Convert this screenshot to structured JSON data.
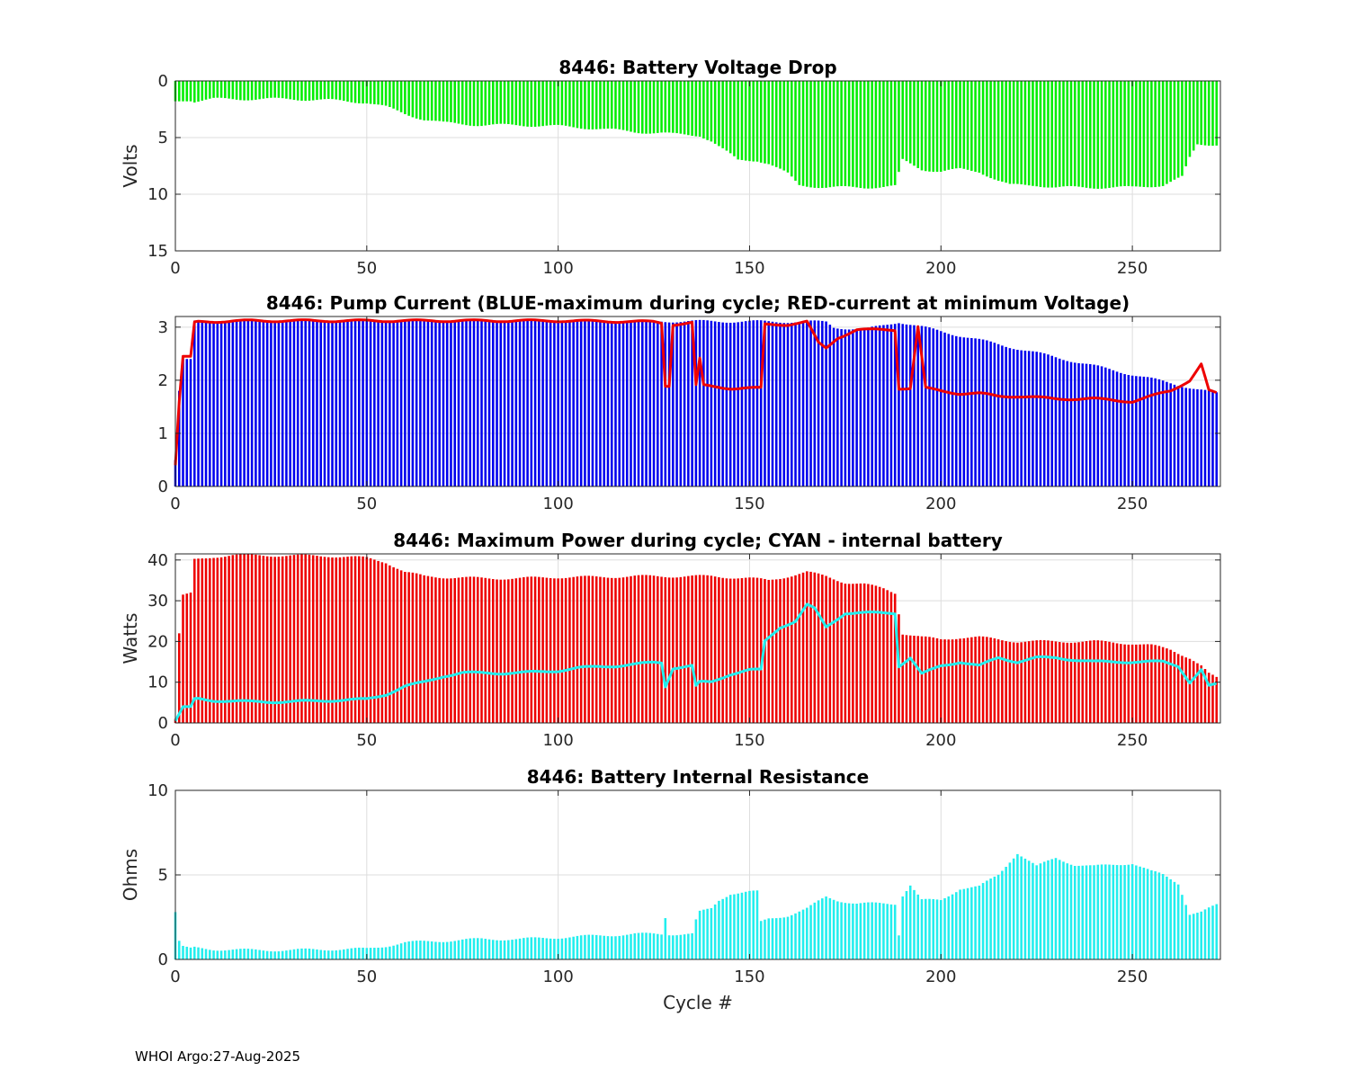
{
  "footer": "WHOI Argo:27-Aug-2025",
  "chart_data": [
    {
      "type": "bar",
      "title": "8446: Battery Voltage Drop",
      "xlabel": "",
      "ylabel": "Volts",
      "xlim": [
        0,
        273
      ],
      "ylim": [
        0,
        15
      ],
      "y_reversed": true,
      "xticks": [
        0,
        50,
        100,
        150,
        200,
        250
      ],
      "yticks": [
        0,
        5,
        10,
        15
      ],
      "grid": true,
      "bar_color": "#00ee00",
      "series": [
        {
          "name": "Voltage drop",
          "points": [
            [
              0,
              1.8
            ],
            [
              5,
              1.8
            ],
            [
              10,
              1.6
            ],
            [
              20,
              1.6
            ],
            [
              30,
              1.6
            ],
            [
              40,
              1.7
            ],
            [
              50,
              1.9
            ],
            [
              55,
              2.3
            ],
            [
              60,
              2.9
            ],
            [
              65,
              3.4
            ],
            [
              70,
              3.7
            ],
            [
              80,
              3.9
            ],
            [
              90,
              3.9
            ],
            [
              100,
              4.0
            ],
            [
              110,
              4.2
            ],
            [
              120,
              4.5
            ],
            [
              127,
              4.6
            ],
            [
              130,
              4.7
            ],
            [
              137,
              4.8
            ],
            [
              140,
              5.3
            ],
            [
              142,
              5.8
            ],
            [
              145,
              6.5
            ],
            [
              147,
              7.0
            ],
            [
              152,
              7.0
            ],
            [
              155,
              7.3
            ],
            [
              160,
              8.2
            ],
            [
              163,
              9.2
            ],
            [
              170,
              9.4
            ],
            [
              180,
              9.4
            ],
            [
              188,
              9.3
            ],
            [
              190,
              7.0
            ],
            [
              195,
              7.8
            ],
            [
              200,
              8.0
            ],
            [
              205,
              7.8
            ],
            [
              210,
              8.0
            ],
            [
              215,
              8.8
            ],
            [
              218,
              9.2
            ],
            [
              225,
              9.2
            ],
            [
              230,
              9.4
            ],
            [
              240,
              9.4
            ],
            [
              250,
              9.4
            ],
            [
              258,
              9.2
            ],
            [
              263,
              8.5
            ],
            [
              265,
              6.8
            ],
            [
              267,
              5.6
            ],
            [
              272,
              5.6
            ]
          ]
        }
      ]
    },
    {
      "type": "bar",
      "title": "8446: Pump Current (BLUE-maximum during cycle; RED-current at minimum Voltage)",
      "xlabel": "",
      "ylabel": "",
      "xlim": [
        0,
        273
      ],
      "ylim": [
        0,
        3.2
      ],
      "xticks": [
        0,
        50,
        100,
        150,
        200,
        250
      ],
      "yticks": [
        0,
        1,
        2,
        3
      ],
      "grid": true,
      "series": [
        {
          "name": "maximum during cycle",
          "color": "#0000ee",
          "kind": "bar",
          "points": [
            [
              0,
              0.5
            ],
            [
              1,
              1.8
            ],
            [
              2,
              2.4
            ],
            [
              4,
              2.4
            ],
            [
              5,
              3.1
            ],
            [
              100,
              3.12
            ],
            [
              170,
              3.1
            ],
            [
              172,
              3.0
            ],
            [
              180,
              2.95
            ],
            [
              189,
              3.1
            ],
            [
              272,
              1.75
            ]
          ]
        },
        {
          "name": "current at minimum Voltage",
          "color": "#ee0000",
          "kind": "line",
          "points": [
            [
              0,
              0.4
            ],
            [
              1,
              1.6
            ],
            [
              2,
              2.45
            ],
            [
              4,
              2.45
            ],
            [
              5,
              3.1
            ],
            [
              20,
              3.12
            ],
            [
              100,
              3.12
            ],
            [
              125,
              3.1
            ],
            [
              127,
              3.08
            ],
            [
              128,
              1.9
            ],
            [
              129,
              1.9
            ],
            [
              130,
              3.05
            ],
            [
              135,
              3.08
            ],
            [
              136,
              1.9
            ],
            [
              137,
              2.4
            ],
            [
              138,
              1.9
            ],
            [
              145,
              1.85
            ],
            [
              153,
              1.85
            ],
            [
              154,
              3.05
            ],
            [
              160,
              3.05
            ],
            [
              165,
              3.1
            ],
            [
              168,
              2.7
            ],
            [
              170,
              2.6
            ],
            [
              173,
              2.8
            ],
            [
              178,
              2.95
            ],
            [
              188,
              2.95
            ],
            [
              189,
              1.85
            ],
            [
              192,
              1.85
            ],
            [
              194,
              3.0
            ],
            [
              196,
              1.85
            ],
            [
              200,
              1.8
            ],
            [
              205,
              1.75
            ],
            [
              210,
              1.75
            ],
            [
              215,
              1.7
            ],
            [
              220,
              1.7
            ],
            [
              230,
              1.65
            ],
            [
              240,
              1.65
            ],
            [
              250,
              1.6
            ],
            [
              260,
              1.8
            ],
            [
              265,
              2.0
            ],
            [
              268,
              2.3
            ],
            [
              270,
              1.8
            ],
            [
              272,
              1.75
            ]
          ]
        }
      ]
    },
    {
      "type": "bar",
      "title": "8446: Maximum Power during cycle; CYAN - internal battery",
      "xlabel": "",
      "ylabel": "Watts",
      "xlim": [
        0,
        273
      ],
      "ylim": [
        0,
        41.5
      ],
      "xticks": [
        0,
        50,
        100,
        150,
        200,
        250
      ],
      "yticks": [
        0,
        10,
        20,
        30,
        40
      ],
      "grid": true,
      "series": [
        {
          "name": "Maximum Power",
          "color": "#ee0000",
          "kind": "bar",
          "points": [
            [
              0,
              1
            ],
            [
              1,
              22
            ],
            [
              2,
              31.5
            ],
            [
              4,
              32
            ],
            [
              5,
              40
            ],
            [
              10,
              40.8
            ],
            [
              15,
              41.2
            ],
            [
              40,
              41
            ],
            [
              50,
              40.5
            ],
            [
              55,
              39.5
            ],
            [
              60,
              37
            ],
            [
              65,
              36
            ],
            [
              70,
              35.8
            ],
            [
              80,
              35.5
            ],
            [
              90,
              35.5
            ],
            [
              100,
              35.8
            ],
            [
              110,
              35.8
            ],
            [
              120,
              36
            ],
            [
              127,
              36
            ],
            [
              130,
              36
            ],
            [
              140,
              36
            ],
            [
              150,
              35.5
            ],
            [
              155,
              35
            ],
            [
              160,
              36
            ],
            [
              165,
              37
            ],
            [
              170,
              36
            ],
            [
              175,
              34.5
            ],
            [
              180,
              34
            ],
            [
              185,
              33
            ],
            [
              188,
              32
            ],
            [
              190,
              22
            ],
            [
              195,
              21
            ],
            [
              200,
              20.5
            ],
            [
              205,
              21
            ],
            [
              210,
              21
            ],
            [
              215,
              20.5
            ],
            [
              220,
              20
            ],
            [
              230,
              20
            ],
            [
              240,
              20
            ],
            [
              250,
              19.5
            ],
            [
              255,
              19
            ],
            [
              260,
              18
            ],
            [
              265,
              16
            ],
            [
              268,
              14
            ],
            [
              270,
              12
            ],
            [
              272,
              11
            ]
          ]
        },
        {
          "name": "internal battery",
          "color": "#22eeee",
          "kind": "line",
          "points": [
            [
              0,
              0.5
            ],
            [
              2,
              4
            ],
            [
              4,
              4
            ],
            [
              5,
              6
            ],
            [
              10,
              5.5
            ],
            [
              20,
              5.2
            ],
            [
              30,
              5.2
            ],
            [
              40,
              5.5
            ],
            [
              50,
              5.8
            ],
            [
              55,
              7
            ],
            [
              60,
              9
            ],
            [
              65,
              10
            ],
            [
              70,
              11.5
            ],
            [
              75,
              12.3
            ],
            [
              85,
              12.2
            ],
            [
              95,
              12.5
            ],
            [
              100,
              12.8
            ],
            [
              105,
              13.5
            ],
            [
              115,
              14
            ],
            [
              125,
              14.8
            ],
            [
              127,
              14.8
            ],
            [
              128,
              9
            ],
            [
              130,
              13.5
            ],
            [
              135,
              14
            ],
            [
              136,
              9
            ],
            [
              137,
              10
            ],
            [
              140,
              10
            ],
            [
              145,
              12
            ],
            [
              150,
              13
            ],
            [
              153,
              13
            ],
            [
              154,
              20
            ],
            [
              158,
              23.5
            ],
            [
              162,
              25
            ],
            [
              165,
              29
            ],
            [
              167,
              28
            ],
            [
              170,
              23.5
            ],
            [
              175,
              27
            ],
            [
              180,
              27
            ],
            [
              188,
              27
            ],
            [
              189,
              14
            ],
            [
              192,
              16
            ],
            [
              195,
              12
            ],
            [
              200,
              14
            ],
            [
              205,
              15
            ],
            [
              210,
              14
            ],
            [
              215,
              16
            ],
            [
              220,
              15
            ],
            [
              225,
              16
            ],
            [
              230,
              16
            ],
            [
              240,
              15
            ],
            [
              250,
              15
            ],
            [
              258,
              15
            ],
            [
              262,
              14
            ],
            [
              265,
              10
            ],
            [
              268,
              13
            ],
            [
              270,
              9
            ],
            [
              272,
              9.5
            ]
          ]
        }
      ]
    },
    {
      "type": "bar",
      "title": "8446: Battery Internal Resistance",
      "xlabel": "Cycle #",
      "ylabel": "Ohms",
      "xlim": [
        0,
        273
      ],
      "ylim": [
        0,
        10
      ],
      "xticks": [
        0,
        50,
        100,
        150,
        200,
        250
      ],
      "yticks": [
        0,
        5,
        10
      ],
      "grid": true,
      "bar_color": "#22eeee",
      "series": [
        {
          "name": "Internal Resistance",
          "points": [
            [
              0,
              2.8
            ],
            [
              1,
              1.1
            ],
            [
              2,
              0.8
            ],
            [
              4,
              0.7
            ],
            [
              10,
              0.6
            ],
            [
              20,
              0.55
            ],
            [
              30,
              0.55
            ],
            [
              40,
              0.6
            ],
            [
              50,
              0.62
            ],
            [
              55,
              0.8
            ],
            [
              60,
              1.0
            ],
            [
              70,
              1.1
            ],
            [
              80,
              1.2
            ],
            [
              90,
              1.2
            ],
            [
              100,
              1.3
            ],
            [
              110,
              1.4
            ],
            [
              120,
              1.5
            ],
            [
              127,
              1.5
            ],
            [
              128,
              2.5
            ],
            [
              129,
              1.5
            ],
            [
              135,
              1.5
            ],
            [
              136,
              2.3
            ],
            [
              137,
              2.8
            ],
            [
              140,
              3.0
            ],
            [
              142,
              3.5
            ],
            [
              145,
              3.9
            ],
            [
              150,
              4.0
            ],
            [
              152,
              4.0
            ],
            [
              153,
              2.2
            ],
            [
              155,
              2.4
            ],
            [
              160,
              2.6
            ],
            [
              165,
              3.0
            ],
            [
              170,
              3.7
            ],
            [
              173,
              3.5
            ],
            [
              178,
              3.3
            ],
            [
              188,
              3.3
            ],
            [
              189,
              1.5
            ],
            [
              190,
              3.8
            ],
            [
              192,
              4.4
            ],
            [
              195,
              3.5
            ],
            [
              200,
              3.5
            ],
            [
              205,
              4.2
            ],
            [
              210,
              4.3
            ],
            [
              215,
              5.0
            ],
            [
              218,
              5.8
            ],
            [
              220,
              6.3
            ],
            [
              225,
              5.5
            ],
            [
              230,
              6.0
            ],
            [
              235,
              5.6
            ],
            [
              240,
              5.5
            ],
            [
              245,
              5.6
            ],
            [
              250,
              5.7
            ],
            [
              255,
              5.2
            ],
            [
              258,
              5.0
            ],
            [
              262,
              4.5
            ],
            [
              265,
              2.7
            ],
            [
              268,
              2.8
            ],
            [
              270,
              3.0
            ],
            [
              272,
              3.2
            ]
          ]
        }
      ]
    }
  ]
}
